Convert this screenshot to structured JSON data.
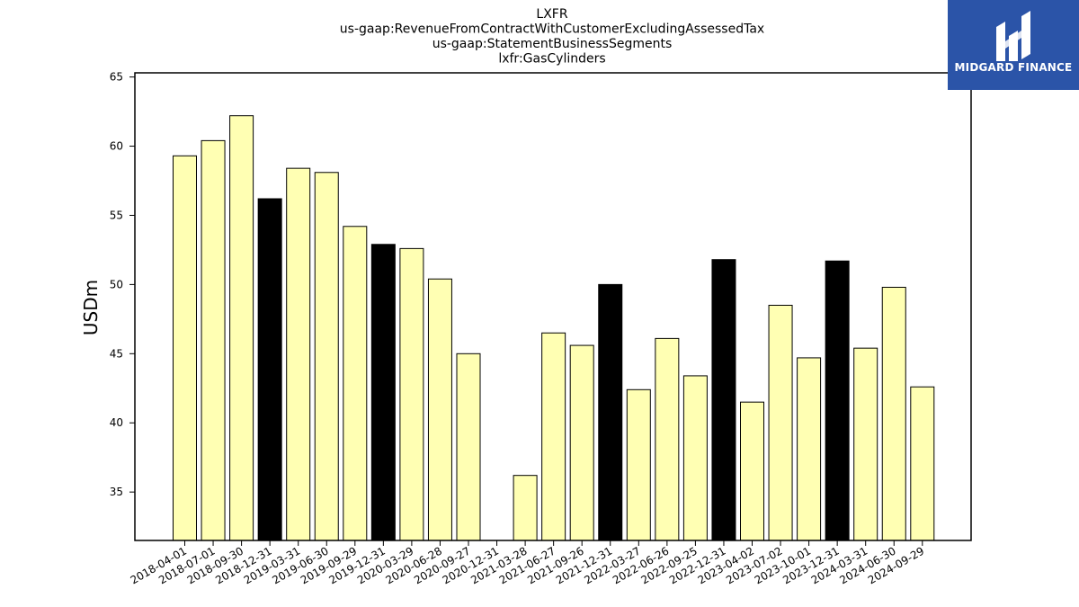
{
  "chart_data": {
    "type": "bar",
    "title_lines": [
      "LXFR",
      "us-gaap:RevenueFromContractWithCustomerExcludingAssessedTax",
      "us-gaap:StatementBusinessSegments",
      "lxfr:GasCylinders"
    ],
    "ylabel": "USDm",
    "xlabel": "",
    "ylim": [
      31.5,
      65.3
    ],
    "yticks": [
      35,
      40,
      45,
      50,
      55,
      60,
      65
    ],
    "categories": [
      "2018-04-01",
      "2018-07-01",
      "2018-09-30",
      "2018-12-31",
      "2019-03-31",
      "2019-06-30",
      "2019-09-29",
      "2019-12-31",
      "2020-03-29",
      "2020-06-28",
      "2020-09-27",
      "2020-12-31",
      "2021-03-28",
      "2021-06-27",
      "2021-09-26",
      "2021-12-31",
      "2022-03-27",
      "2022-06-26",
      "2022-09-25",
      "2022-12-31",
      "2023-04-02",
      "2023-07-02",
      "2023-10-01",
      "2023-12-31",
      "2024-03-31",
      "2024-06-30",
      "2024-09-29"
    ],
    "values": [
      59.3,
      60.4,
      62.2,
      56.2,
      58.4,
      58.1,
      54.2,
      52.9,
      52.6,
      50.4,
      45.0,
      null,
      36.2,
      46.5,
      45.6,
      50.0,
      42.4,
      46.1,
      43.4,
      51.8,
      41.5,
      48.5,
      44.7,
      51.7,
      45.4,
      49.8,
      42.6
    ],
    "highlight": [
      false,
      false,
      false,
      true,
      false,
      false,
      false,
      true,
      false,
      false,
      false,
      false,
      false,
      false,
      false,
      true,
      false,
      false,
      false,
      true,
      false,
      false,
      false,
      true,
      false,
      false,
      false
    ],
    "colors": {
      "bar": "#ffffb3",
      "highlight": "#000000",
      "edge": "#000000"
    },
    "grid": false,
    "legend": "none"
  },
  "logo": {
    "text": "MIDGARD FINANCE"
  }
}
